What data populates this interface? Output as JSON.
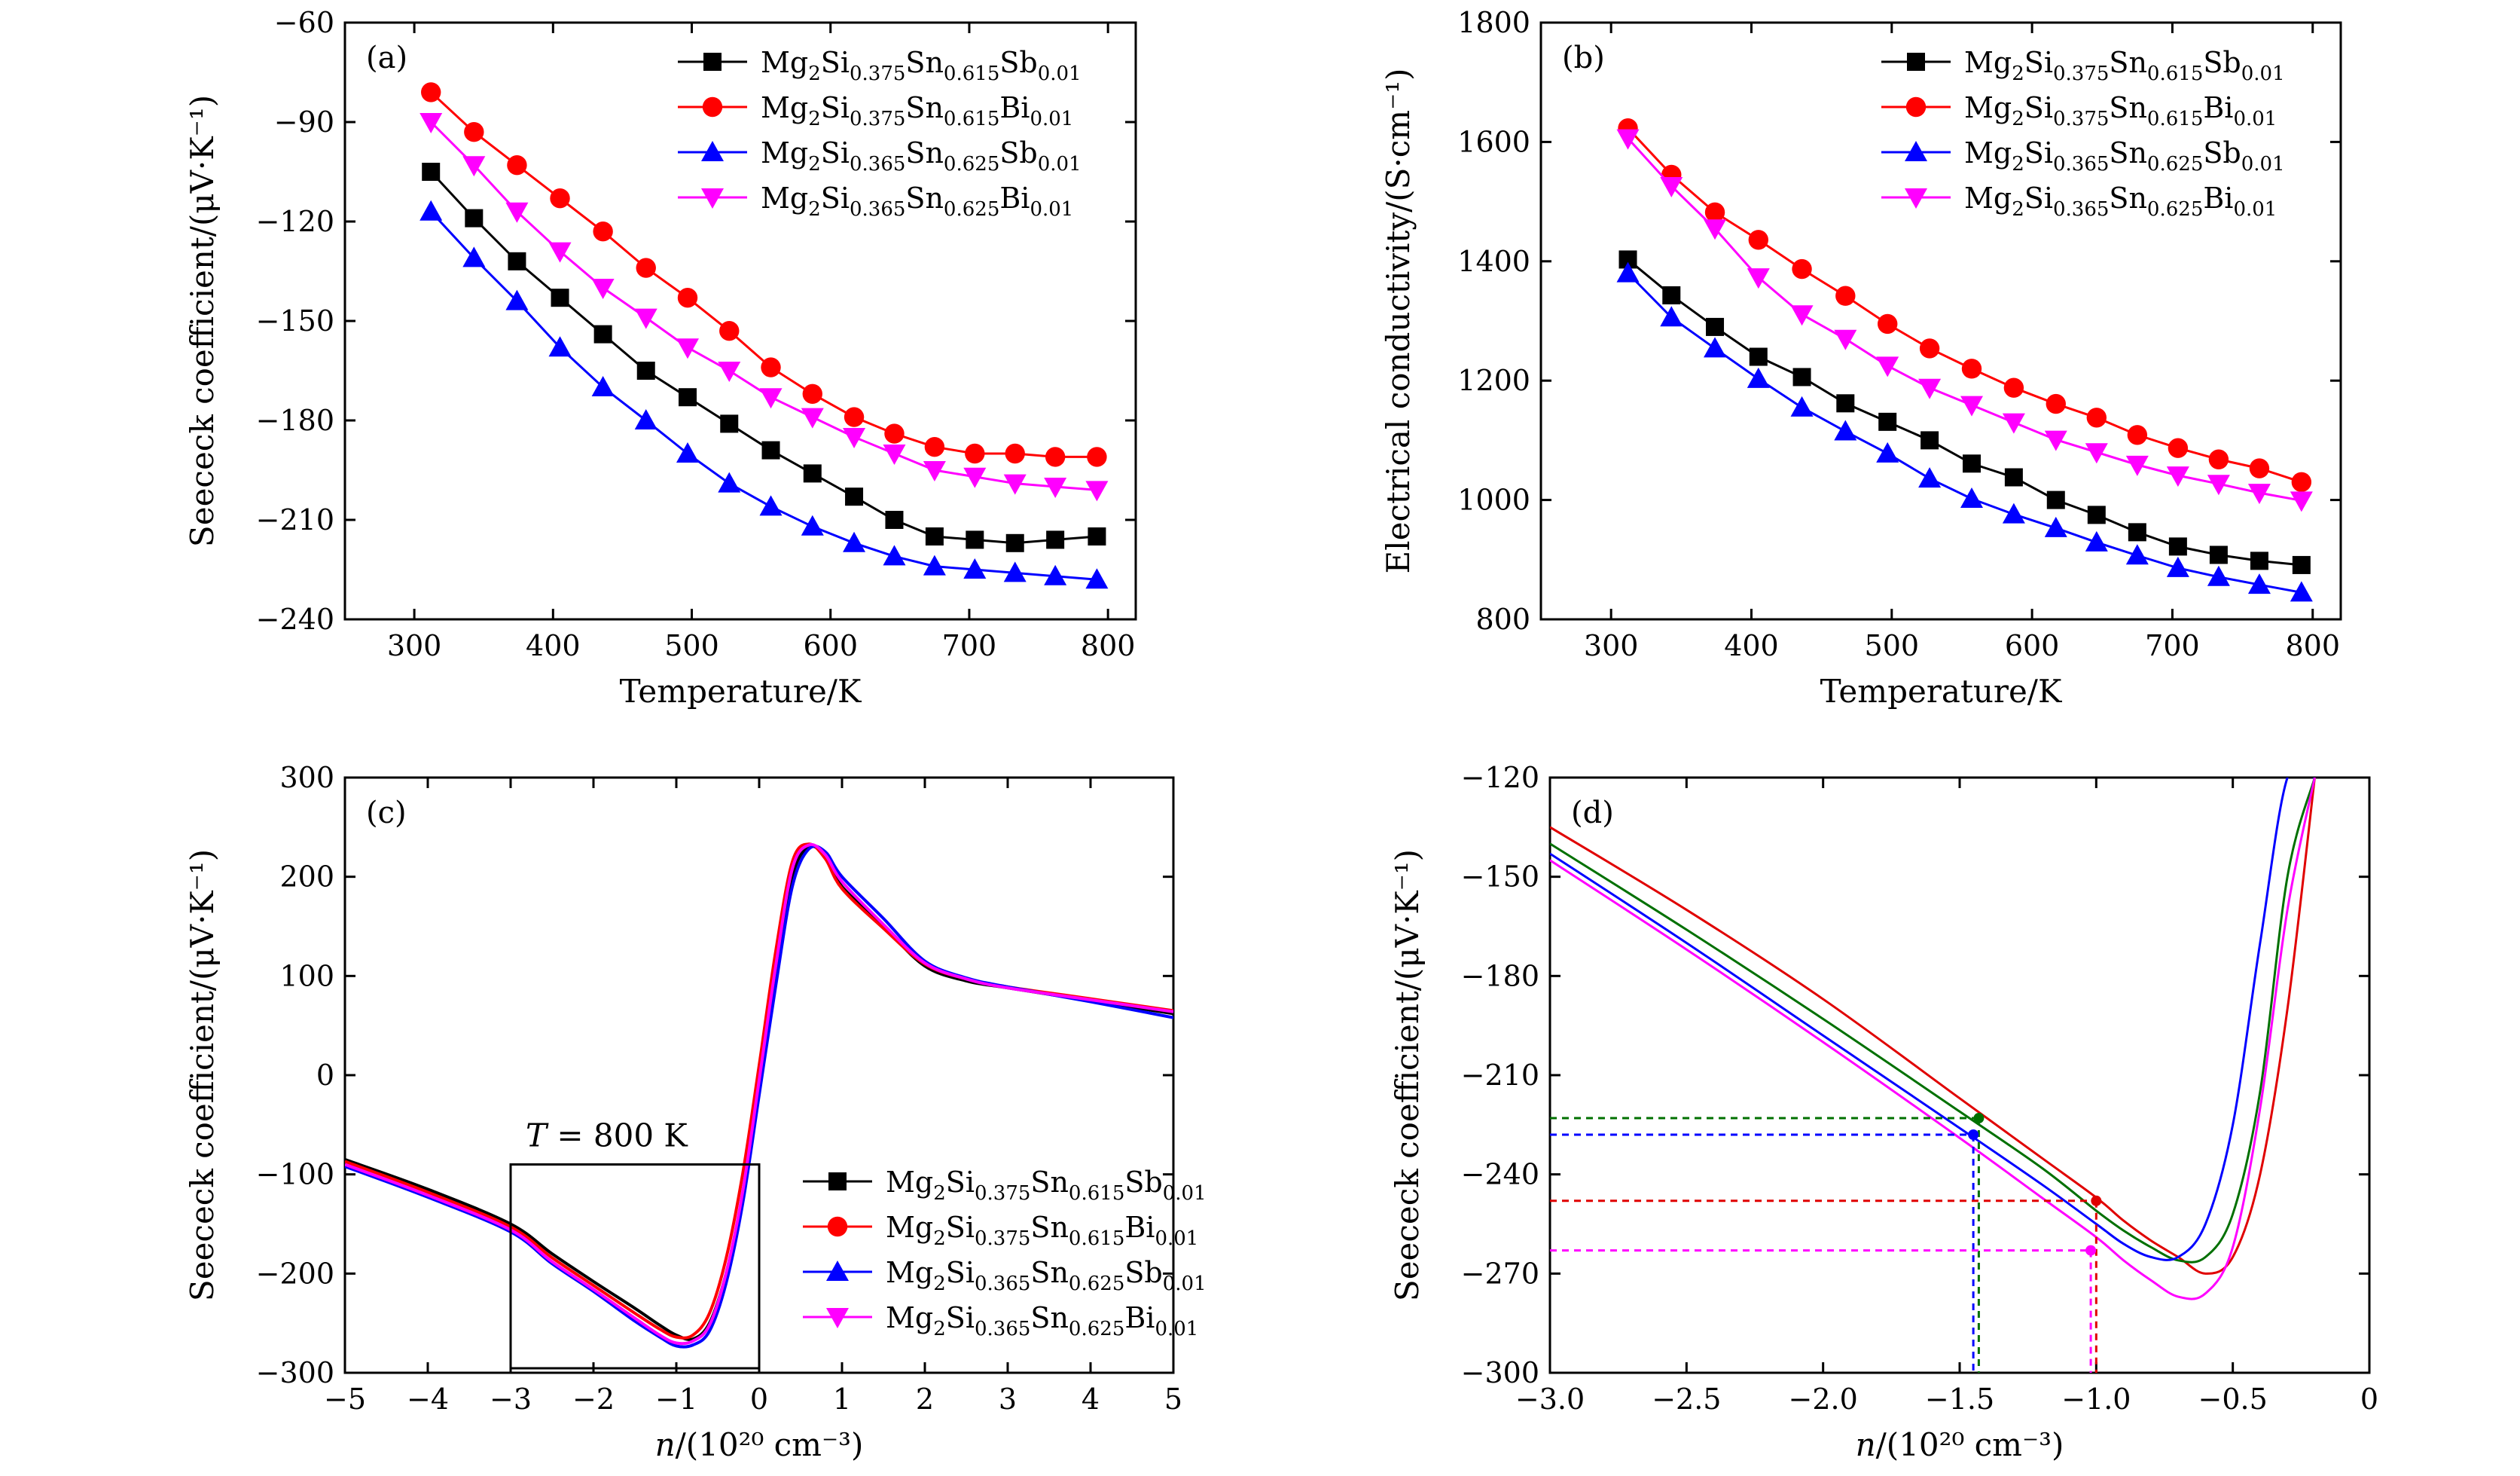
{
  "legend_html_note": "",
  "chart_data": [
    {
      "id": "a",
      "type": "line",
      "panel_label": "(a)",
      "xlabel": "Temperature/K",
      "ylabel": "Seececk coefficient/(μV·K⁻¹)",
      "xlim": [
        250,
        820
      ],
      "ylim": [
        -240,
        -60
      ],
      "xticks": [
        300,
        400,
        500,
        600,
        700,
        800
      ],
      "yticks": [
        -60,
        -90,
        -120,
        -150,
        -180,
        -210,
        -240
      ],
      "legend_position": "top-right",
      "x": [
        312,
        343,
        374,
        405,
        436,
        467,
        497,
        527,
        557,
        587,
        617,
        646,
        675,
        704,
        733,
        762,
        792
      ],
      "series": [
        {
          "name": "Mg2Si0.375Sn0.615Sb0.01",
          "color": "#000000",
          "marker": "square",
          "values": [
            -105,
            -119,
            -132,
            -143,
            -154,
            -165,
            -173,
            -181,
            -189,
            -196,
            -203,
            -210,
            -215,
            -216,
            -217,
            -216,
            -215
          ]
        },
        {
          "name": "Mg2Si0.375Sn0.615Bi0.01",
          "color": "#ff0000",
          "marker": "circle",
          "values": [
            -81,
            -93,
            -103,
            -113,
            -123,
            -134,
            -143,
            -153,
            -164,
            -172,
            -179,
            -184,
            -188,
            -190,
            -190,
            -191,
            -191
          ]
        },
        {
          "name": "Mg2Si0.365Sn0.625Sb0.01",
          "color": "#0000ff",
          "marker": "triangle-up",
          "values": [
            -117,
            -131,
            -144,
            -158,
            -170,
            -180,
            -190,
            -199,
            -206,
            -212,
            -217,
            -221,
            -224,
            -225,
            -226,
            -227,
            -228
          ]
        },
        {
          "name": "Mg2Si0.365Sn0.625Bi0.01",
          "color": "#ff00ff",
          "marker": "triangle-down",
          "values": [
            -90,
            -103,
            -117,
            -129,
            -140,
            -149,
            -158,
            -165,
            -173,
            -179,
            -185,
            -190,
            -195,
            -197,
            -199,
            -200,
            -201
          ]
        }
      ]
    },
    {
      "id": "b",
      "type": "line",
      "panel_label": "(b)",
      "xlabel": "Temperature/K",
      "ylabel": "Electrical conductivity/(S·cm⁻¹)",
      "xlim": [
        250,
        820
      ],
      "ylim": [
        800,
        1800
      ],
      "xticks": [
        300,
        400,
        500,
        600,
        700,
        800
      ],
      "yticks": [
        800,
        1000,
        1200,
        1400,
        1600,
        1800
      ],
      "legend_position": "top-right",
      "x": [
        312,
        343,
        374,
        405,
        436,
        467,
        497,
        527,
        557,
        587,
        617,
        646,
        675,
        704,
        733,
        762,
        792
      ],
      "series": [
        {
          "name": "Mg2Si0.375Sn0.615Sb0.01",
          "color": "#000000",
          "marker": "square",
          "values": [
            1403,
            1343,
            1290,
            1240,
            1206,
            1162,
            1131,
            1100,
            1061,
            1038,
            1000,
            975,
            946,
            922,
            908,
            898,
            891
          ]
        },
        {
          "name": "Mg2Si0.375Sn0.615Bi0.01",
          "color": "#ff0000",
          "marker": "circle",
          "values": [
            1623,
            1545,
            1482,
            1436,
            1387,
            1342,
            1295,
            1254,
            1220,
            1188,
            1161,
            1138,
            1109,
            1087,
            1068,
            1053,
            1030
          ]
        },
        {
          "name": "Mg2Si0.365Sn0.625Sb0.01",
          "color": "#0000ff",
          "marker": "triangle-up",
          "values": [
            1380,
            1306,
            1254,
            1203,
            1155,
            1115,
            1078,
            1036,
            1002,
            976,
            953,
            929,
            907,
            886,
            871,
            858,
            845
          ]
        },
        {
          "name": "Mg2Si0.365Sn0.625Bi0.01",
          "color": "#ff00ff",
          "marker": "triangle-down",
          "values": [
            1606,
            1526,
            1455,
            1373,
            1311,
            1270,
            1225,
            1188,
            1159,
            1130,
            1101,
            1080,
            1059,
            1041,
            1027,
            1012,
            999
          ]
        }
      ]
    },
    {
      "id": "c",
      "type": "line",
      "panel_label": "(c)",
      "xlabel_italic": "n",
      "xlabel": "/(10²⁰ cm⁻³)",
      "ylabel": "Seececk coefficient/(μV·K⁻¹)",
      "xlim": [
        -5,
        5
      ],
      "ylim": [
        -300,
        300
      ],
      "xticks": [
        -5,
        -4,
        -3,
        -2,
        -1,
        0,
        1,
        2,
        3,
        4,
        5
      ],
      "yticks": [
        300,
        200,
        100,
        0,
        -100,
        -200,
        -300
      ],
      "legend_position": "bottom-right",
      "annotation": "T = 800 K",
      "annotation_box": {
        "x": [
          -3,
          0
        ],
        "y": [
          -300,
          -90
        ]
      },
      "x": [
        -5,
        -4,
        -3,
        -2.5,
        -2,
        -1.5,
        -1.2,
        -1,
        -0.8,
        -0.6,
        -0.4,
        -0.2,
        0,
        0.2,
        0.4,
        0.6,
        0.8,
        1.0,
        1.5,
        2,
        2.5,
        3,
        4,
        5
      ],
      "series": [
        {
          "name": "Mg2Si0.375Sn0.615Sb0.01",
          "color": "#000000",
          "marker": "square",
          "values": [
            -85,
            -115,
            -150,
            -180,
            -208,
            -235,
            -252,
            -262,
            -266,
            -250,
            -200,
            -120,
            -10,
            100,
            200,
            230,
            220,
            190,
            150,
            110,
            95,
            88,
            75,
            62
          ]
        },
        {
          "name": "Mg2Si0.375Sn0.615Bi0.01",
          "color": "#ff0000",
          "marker": "circle",
          "values": [
            -87,
            -118,
            -153,
            -184,
            -212,
            -240,
            -256,
            -264,
            -262,
            -240,
            -185,
            -100,
            10,
            125,
            215,
            233,
            218,
            188,
            148,
            112,
            97,
            89,
            77,
            65
          ]
        },
        {
          "name": "Mg2Si0.365Sn0.625Sb0.01",
          "color": "#0000ff",
          "marker": "triangle-up",
          "values": [
            -92,
            -123,
            -158,
            -190,
            -218,
            -248,
            -264,
            -273,
            -272,
            -258,
            -210,
            -130,
            -20,
            90,
            190,
            228,
            225,
            200,
            158,
            115,
            98,
            89,
            74,
            58
          ]
        },
        {
          "name": "Mg2Si0.365Sn0.625Bi0.01",
          "color": "#ff00ff",
          "marker": "triangle-down",
          "values": [
            -90,
            -121,
            -156,
            -188,
            -216,
            -245,
            -262,
            -270,
            -268,
            -252,
            -200,
            -118,
            -5,
            110,
            208,
            232,
            222,
            195,
            152,
            113,
            97,
            88,
            76,
            64
          ]
        }
      ]
    },
    {
      "id": "d",
      "type": "line",
      "panel_label": "(d)",
      "xlabel_italic": "n",
      "xlabel": "/(10²⁰ cm⁻³)",
      "ylabel": "Seececk coefficient/(μV·K⁻¹)",
      "xlim": [
        -3,
        0
      ],
      "ylim": [
        -300,
        -120
      ],
      "xticks": [
        -3.0,
        -2.5,
        -2.0,
        -1.5,
        -1.0,
        -0.5,
        0
      ],
      "xtick_labels": [
        "−3.0",
        "−2.5",
        "−2.0",
        "−1.5",
        "−1.0",
        "−0.5",
        "0"
      ],
      "yticks": [
        -120,
        -150,
        -180,
        -210,
        -240,
        -270,
        -300
      ],
      "x": [
        -3.0,
        -2.5,
        -2.0,
        -1.5,
        -1.2,
        -1.0,
        -0.9,
        -0.8,
        -0.7,
        -0.6,
        -0.5,
        -0.4,
        -0.3,
        -0.2
      ],
      "series": [
        {
          "name": "red",
          "color": "#e00000",
          "values": [
            -135,
            -160,
            -187,
            -217,
            -235,
            -247,
            -254,
            -260,
            -265,
            -270,
            -265,
            -240,
            -190,
            -120
          ]
        },
        {
          "name": "green",
          "color": "#007000",
          "values": [
            -140,
            -166,
            -193,
            -221,
            -238,
            -251,
            -257,
            -262,
            -266,
            -265,
            -252,
            -215,
            -150,
            -120
          ]
        },
        {
          "name": "blue",
          "color": "#0000ff",
          "values": [
            -143,
            -170,
            -198,
            -226,
            -243,
            -255,
            -261,
            -265,
            -265,
            -255,
            -225,
            -170,
            -120,
            -120
          ]
        },
        {
          "name": "magenta",
          "color": "#ff00ff",
          "values": [
            -145,
            -172,
            -200,
            -229,
            -247,
            -259,
            -266,
            -272,
            -277,
            -276,
            -262,
            -220,
            -160,
            -120
          ]
        }
      ],
      "markers": [
        {
          "x": -1.43,
          "y": -223,
          "color": "#007000"
        },
        {
          "x": -1.45,
          "y": -228,
          "color": "#0000ff"
        },
        {
          "x": -1.0,
          "y": -248,
          "color": "#e00000"
        },
        {
          "x": -1.02,
          "y": -263,
          "color": "#ff00ff"
        }
      ]
    }
  ],
  "legend_names": {
    "sb375": {
      "base": "Mg",
      "s1": "2",
      "b2": "Si",
      "s2": "0.375",
      "b3": "Sn",
      "s3": "0.615",
      "b4": "Sb",
      "s4": "0.01"
    },
    "bi375": {
      "base": "Mg",
      "s1": "2",
      "b2": "Si",
      "s2": "0.375",
      "b3": "Sn",
      "s3": "0.615",
      "b4": "Bi",
      "s4": "0.01"
    },
    "sb365": {
      "base": "Mg",
      "s1": "2",
      "b2": "Si",
      "s2": "0.365",
      "b3": "Sn",
      "s3": "0.625",
      "b4": "Sb",
      "s4": "0.01"
    },
    "bi365": {
      "base": "Mg",
      "s1": "2",
      "b2": "Si",
      "s2": "0.365",
      "b3": "Sn",
      "s3": "0.625",
      "b4": "Bi",
      "s4": "0.01"
    }
  }
}
